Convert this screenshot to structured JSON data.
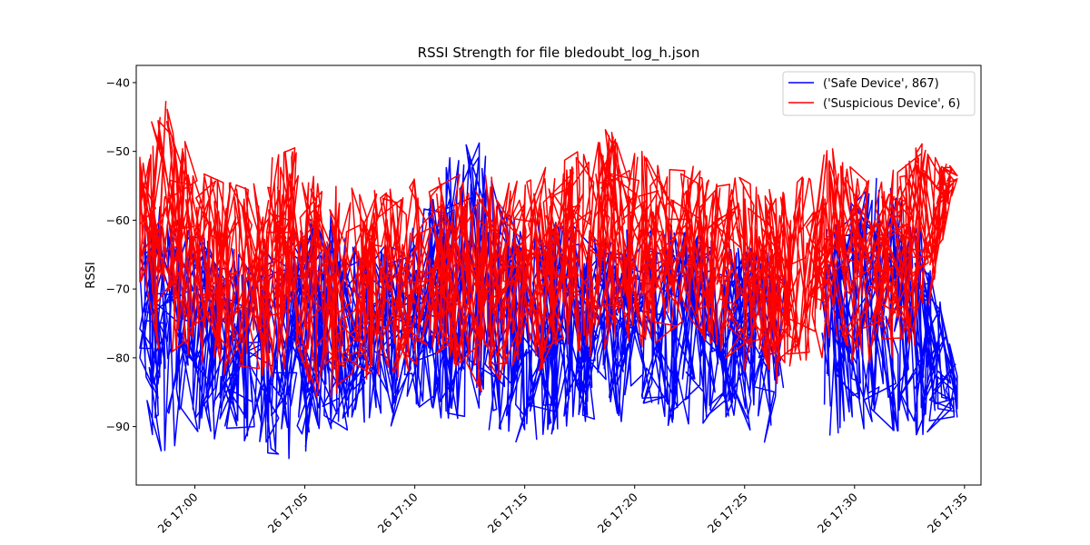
{
  "chart_data": {
    "type": "line",
    "title": "RSSI Strength for file bledoubt_log_h.json",
    "xlabel": "",
    "ylabel": "RSSI",
    "x_type": "time",
    "xlim": [
      "26 16:57:20",
      "26 17:35:45"
    ],
    "ylim": [
      -98.5,
      -37.5
    ],
    "x_ticks": [
      "26 17:00",
      "26 17:05",
      "26 17:10",
      "26 17:15",
      "26 17:20",
      "26 17:25",
      "26 17:30",
      "26 17:35"
    ],
    "y_ticks": [
      -40,
      -50,
      -60,
      -70,
      -80,
      -90
    ],
    "legend_position": "top-right",
    "grid": false,
    "series": [
      {
        "name": "('Safe Device', 867)",
        "color": "#0000ff",
        "envelope": [
          {
            "t": "26 16:57:30",
            "lo": -90,
            "hi": -62
          },
          {
            "t": "26 16:58:30",
            "lo": -94,
            "hi": -56
          },
          {
            "t": "26 17:00:00",
            "lo": -92,
            "hi": -62
          },
          {
            "t": "26 17:02:00",
            "lo": -92,
            "hi": -64
          },
          {
            "t": "26 17:04:30",
            "lo": -96,
            "hi": -62
          },
          {
            "t": "26 17:06:00",
            "lo": -91,
            "hi": -56
          },
          {
            "t": "26 17:08:00",
            "lo": -90,
            "hi": -64
          },
          {
            "t": "26 17:10:00",
            "lo": -90,
            "hi": -60
          },
          {
            "t": "26 17:11:30",
            "lo": -89,
            "hi": -50
          },
          {
            "t": "26 17:13:00",
            "lo": -90,
            "hi": -48
          },
          {
            "t": "26 17:15:00",
            "lo": -93,
            "hi": -60
          },
          {
            "t": "26 17:17:00",
            "lo": -90,
            "hi": -60
          },
          {
            "t": "26 17:19:00",
            "lo": -90,
            "hi": -62
          },
          {
            "t": "26 17:21:00",
            "lo": -90,
            "hi": -60
          },
          {
            "t": "26 17:23:00",
            "lo": -90,
            "hi": -62
          },
          {
            "t": "26 17:25:00",
            "lo": -90,
            "hi": -64
          },
          {
            "t": "26 17:26:30",
            "lo": -94,
            "hi": -64
          },
          {
            "t": "26 17:29:00",
            "lo": -92,
            "hi": -60
          },
          {
            "t": "26 17:31:00",
            "lo": -90,
            "hi": -53
          },
          {
            "t": "26 17:33:00",
            "lo": -92,
            "hi": -60
          },
          {
            "t": "26 17:34:40",
            "lo": -89,
            "hi": -82
          }
        ]
      },
      {
        "name": "('Suspicious Device', 6)",
        "color": "#ff0000",
        "envelope": [
          {
            "t": "26 16:57:30",
            "lo": -73,
            "hi": -50
          },
          {
            "t": "26 16:58:30",
            "lo": -80,
            "hi": -40
          },
          {
            "t": "26 17:00:00",
            "lo": -82,
            "hi": -52
          },
          {
            "t": "26 17:02:00",
            "lo": -83,
            "hi": -55
          },
          {
            "t": "26 17:04:30",
            "lo": -85,
            "hi": -48
          },
          {
            "t": "26 17:06:00",
            "lo": -86,
            "hi": -55
          },
          {
            "t": "26 17:08:00",
            "lo": -84,
            "hi": -55
          },
          {
            "t": "26 17:10:00",
            "lo": -83,
            "hi": -54
          },
          {
            "t": "26 17:11:30",
            "lo": -80,
            "hi": -53
          },
          {
            "t": "26 17:13:00",
            "lo": -86,
            "hi": -53
          },
          {
            "t": "26 17:15:00",
            "lo": -83,
            "hi": -53
          },
          {
            "t": "26 17:17:00",
            "lo": -80,
            "hi": -51
          },
          {
            "t": "26 17:19:00",
            "lo": -80,
            "hi": -46
          },
          {
            "t": "26 17:21:00",
            "lo": -78,
            "hi": -52
          },
          {
            "t": "26 17:23:00",
            "lo": -78,
            "hi": -52
          },
          {
            "t": "26 17:25:00",
            "lo": -82,
            "hi": -54
          },
          {
            "t": "26 17:26:30",
            "lo": -84,
            "hi": -56
          },
          {
            "t": "26 17:29:00",
            "lo": -80,
            "hi": -49
          },
          {
            "t": "26 17:31:00",
            "lo": -82,
            "hi": -55
          },
          {
            "t": "26 17:33:00",
            "lo": -78,
            "hi": -48
          },
          {
            "t": "26 17:34:40",
            "lo": -54,
            "hi": -53
          }
        ]
      }
    ]
  }
}
